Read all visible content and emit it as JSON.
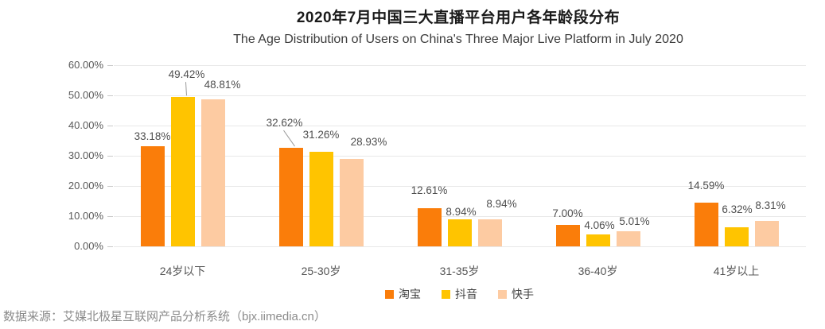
{
  "chart_data": {
    "type": "bar",
    "title": "2020年7月中国三大直播平台用户各年龄段分布",
    "subtitle": "The Age Distribution of Users on China's Three Major Live Platform in July 2020",
    "categories": [
      "24岁以下",
      "25-30岁",
      "31-35岁",
      "36-40岁",
      "41岁以上"
    ],
    "series": [
      {
        "name": "淘宝",
        "color": "#FA7D0A",
        "values": [
          33.18,
          32.62,
          12.61,
          7.0,
          14.59
        ],
        "labels": [
          "33.18%",
          "32.62%",
          "12.61%",
          "7.00%",
          "14.59%"
        ]
      },
      {
        "name": "抖音",
        "color": "#FFC400",
        "values": [
          49.42,
          31.26,
          8.94,
          4.06,
          6.32
        ],
        "labels": [
          "49.42%",
          "31.26%",
          "8.94%",
          "4.06%",
          "6.32%"
        ]
      },
      {
        "name": "快手",
        "color": "#FDCBA2",
        "values": [
          48.81,
          28.93,
          8.94,
          5.01,
          8.31
        ],
        "labels": [
          "48.81%",
          "28.93%",
          "8.94%",
          "5.01%",
          "8.31%"
        ]
      }
    ],
    "xlabel": "",
    "ylabel": "",
    "ylim": [
      0,
      60
    ],
    "ytick_step": 10,
    "ytick_labels": [
      "0.00%",
      "10.00%",
      "20.00%",
      "30.00%",
      "40.00%",
      "50.00%",
      "60.00%"
    ],
    "grid": true,
    "legend_position": "bottom"
  },
  "footer": {
    "source": "数据来源：艾媒北极星互联网产品分析系统（bjx.iimedia.cn）"
  },
  "colors": {
    "grid": "#E8E8E8",
    "tick": "#C9C9C9",
    "axis_text": "#595959",
    "value_text": "#4F4F4F",
    "title_text": "#1A1A1A",
    "subtitle_text": "#3C3C3C",
    "source_text": "#8C8C8C",
    "leader_line": "#9B9B9B"
  }
}
